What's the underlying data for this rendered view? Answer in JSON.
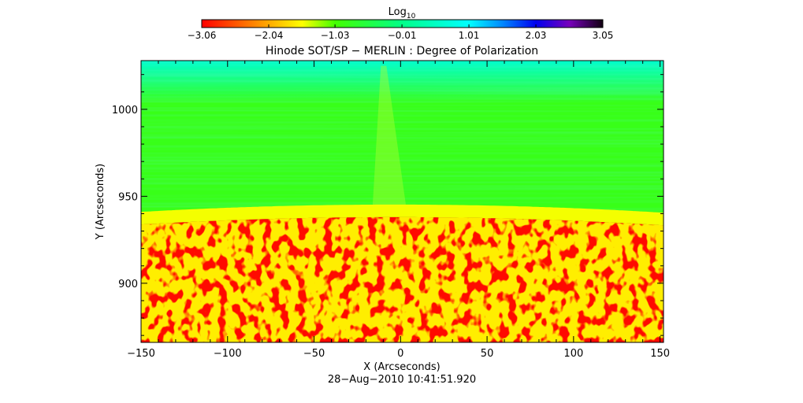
{
  "chart_data": {
    "type": "heatmap",
    "title": "Hinode SOT/SP − MERLIN : Degree of Polarization",
    "xlabel": "X (Arcseconds)",
    "ylabel": "Y (Arcseconds)",
    "xlim": [
      -150,
      152
    ],
    "ylim": [
      866,
      1028
    ],
    "x_ticks": [
      -150,
      -100,
      -50,
      0,
      50,
      100,
      150
    ],
    "x_tick_labels": [
      "−150",
      "−100",
      "−50",
      "0",
      "50",
      "100",
      "150"
    ],
    "y_ticks": [
      900,
      950,
      1000
    ],
    "y_tick_labels": [
      "900",
      "950",
      "1000"
    ],
    "colorbar": {
      "label_base": "Log",
      "label_sub": "10",
      "range": [
        -3.06,
        3.05
      ],
      "ticks": [
        -3.06,
        -2.04,
        -1.03,
        -0.01,
        1.01,
        2.03,
        3.05
      ],
      "tick_labels": [
        "−3.06",
        "−2.04",
        "−1.03",
        "−0.01",
        "1.01",
        "2.03",
        "3.05"
      ],
      "stops": [
        {
          "value": -3.06,
          "color": "#ff0000"
        },
        {
          "value": -2.04,
          "color": "#ffaa00"
        },
        {
          "value": -1.53,
          "color": "#ffff00"
        },
        {
          "value": -1.03,
          "color": "#44ff00"
        },
        {
          "value": -0.01,
          "color": "#00ff88"
        },
        {
          "value": 1.01,
          "color": "#00ffff"
        },
        {
          "value": 1.52,
          "color": "#0088ff"
        },
        {
          "value": 2.03,
          "color": "#0000ee"
        },
        {
          "value": 2.54,
          "color": "#7700bb"
        },
        {
          "value": 3.05,
          "color": "#110011"
        }
      ]
    },
    "limb": {
      "y_at_center": 938,
      "center_x": -3,
      "curvature": 0.000195
    },
    "regions": [
      {
        "name": "disk",
        "value": -3.0
      },
      {
        "name": "limb_band",
        "value": -1.5
      },
      {
        "name": "off_limb",
        "value": -0.85
      },
      {
        "name": "top_edge",
        "value": 0.6
      }
    ],
    "timestamp": "28−Aug−2010 10:41:51.920"
  }
}
